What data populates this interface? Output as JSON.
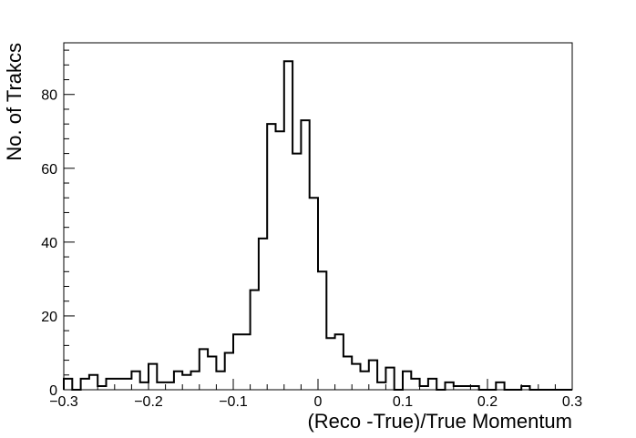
{
  "chart_data": {
    "type": "bar",
    "style": "step-histogram",
    "xlabel": "(Reco -True)/True Momentum",
    "ylabel": "No. of Trakcs",
    "xlim": [
      -0.3,
      0.3
    ],
    "ylim": [
      0,
      94
    ],
    "bin_width": 0.01,
    "x_ticks": [
      {
        "v": -0.3,
        "label": "−0.3"
      },
      {
        "v": -0.2,
        "label": "−0.2"
      },
      {
        "v": -0.1,
        "label": "−0.1"
      },
      {
        "v": 0,
        "label": "0"
      },
      {
        "v": 0.1,
        "label": "0.1"
      },
      {
        "v": 0.2,
        "label": "0.2"
      },
      {
        "v": 0.3,
        "label": "0.3"
      }
    ],
    "y_ticks": [
      {
        "v": 0,
        "label": "0"
      },
      {
        "v": 20,
        "label": "20"
      },
      {
        "v": 40,
        "label": "40"
      },
      {
        "v": 60,
        "label": "60"
      },
      {
        "v": 80,
        "label": "80"
      }
    ],
    "bin_edges": [
      -0.3,
      -0.29,
      -0.28,
      -0.27,
      -0.26,
      -0.25,
      -0.24,
      -0.23,
      -0.22,
      -0.21,
      -0.2,
      -0.19,
      -0.18,
      -0.17,
      -0.16,
      -0.15,
      -0.14,
      -0.13,
      -0.12,
      -0.11,
      -0.1,
      -0.09,
      -0.08,
      -0.07,
      -0.06,
      -0.05,
      -0.04,
      -0.03,
      -0.02,
      -0.01,
      0.0,
      0.01,
      0.02,
      0.03,
      0.04,
      0.05,
      0.06,
      0.07,
      0.08,
      0.09,
      0.1,
      0.11,
      0.12,
      0.13,
      0.14,
      0.15,
      0.16,
      0.17,
      0.18,
      0.19,
      0.2,
      0.21,
      0.22,
      0.23,
      0.24,
      0.25,
      0.26,
      0.27,
      0.28,
      0.29,
      0.3
    ],
    "values": [
      3,
      0,
      3,
      4,
      1,
      3,
      3,
      3,
      5,
      2,
      7,
      2,
      2,
      5,
      4,
      5,
      11,
      9,
      5,
      10,
      15,
      15,
      27,
      41,
      72,
      70,
      89,
      64,
      73,
      52,
      32,
      14,
      15,
      9,
      7,
      5,
      8,
      2,
      6,
      0,
      5,
      3,
      1,
      3,
      0,
      2,
      1,
      1,
      1,
      0,
      0,
      2,
      0,
      0,
      1,
      0,
      0,
      0,
      0,
      0
    ],
    "grid": false,
    "legend": "none"
  }
}
